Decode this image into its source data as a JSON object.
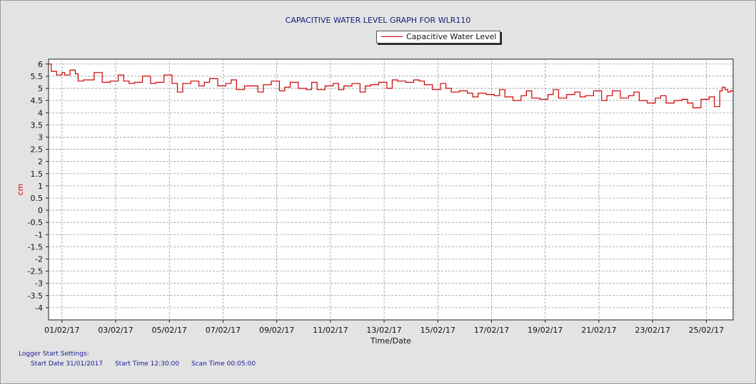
{
  "window": {
    "title": "CAPACITIVE WATER LEVEL GRAPH FOR WLR110"
  },
  "legend": {
    "entries": [
      "Capacitive Water Level"
    ]
  },
  "settings": {
    "header": "Logger Start Settings:",
    "start_date": "Start Date 31/01/2017",
    "start_time": "Start Time 12:30:00",
    "scan_time": "Scan Time 00:05:00"
  },
  "colors": {
    "series": "#cc0000",
    "title": "#1a1a7a",
    "grid": "#9a9a9a",
    "ylabel": "#cc0000"
  },
  "chart_data": {
    "type": "line",
    "title": "CAPACITIVE WATER LEVEL GRAPH FOR WLR110",
    "xlabel": "Time/Date",
    "ylabel": "cm",
    "ylim": [
      -4.5,
      6.2
    ],
    "yticks": [
      6,
      5.5,
      5,
      4.5,
      4,
      3.5,
      3,
      2.5,
      2,
      1.5,
      1,
      0.5,
      0,
      -0.5,
      -1,
      -1.5,
      -2,
      -2.5,
      -3,
      -3.5,
      -4
    ],
    "xlim_days": [
      0,
      25.5
    ],
    "xticks": [
      {
        "day": 0.5,
        "label": "01/02/17"
      },
      {
        "day": 2.5,
        "label": "03/02/17"
      },
      {
        "day": 4.5,
        "label": "05/02/17"
      },
      {
        "day": 6.5,
        "label": "07/02/17"
      },
      {
        "day": 8.5,
        "label": "09/02/17"
      },
      {
        "day": 10.5,
        "label": "11/02/17"
      },
      {
        "day": 12.5,
        "label": "13/02/17"
      },
      {
        "day": 14.5,
        "label": "15/02/17"
      },
      {
        "day": 16.5,
        "label": "17/02/17"
      },
      {
        "day": 18.5,
        "label": "19/02/17"
      },
      {
        "day": 20.5,
        "label": "21/02/17"
      },
      {
        "day": 22.5,
        "label": "23/02/17"
      },
      {
        "day": 24.5,
        "label": "25/02/17"
      }
    ],
    "grid": true,
    "legend_position": "top-center",
    "series": [
      {
        "name": "Capacitive Water Level",
        "x": [
          0.0,
          0.1,
          0.3,
          0.5,
          0.6,
          0.8,
          1.0,
          1.1,
          1.3,
          1.5,
          1.7,
          2.0,
          2.3,
          2.6,
          2.8,
          3.0,
          3.2,
          3.5,
          3.8,
          4.0,
          4.3,
          4.6,
          4.8,
          5.0,
          5.3,
          5.6,
          5.8,
          6.0,
          6.3,
          6.6,
          6.8,
          7.0,
          7.3,
          7.6,
          7.8,
          8.0,
          8.3,
          8.6,
          8.8,
          9.0,
          9.3,
          9.6,
          9.8,
          10.0,
          10.3,
          10.6,
          10.8,
          11.0,
          11.3,
          11.6,
          11.8,
          12.0,
          12.3,
          12.6,
          12.8,
          13.0,
          13.3,
          13.6,
          13.8,
          14.0,
          14.3,
          14.6,
          14.8,
          15.0,
          15.3,
          15.6,
          15.8,
          16.0,
          16.3,
          16.6,
          16.8,
          17.0,
          17.3,
          17.6,
          17.8,
          18.0,
          18.3,
          18.6,
          18.8,
          19.0,
          19.3,
          19.6,
          19.8,
          20.0,
          20.3,
          20.6,
          20.8,
          21.0,
          21.3,
          21.6,
          21.8,
          22.0,
          22.3,
          22.6,
          22.8,
          23.0,
          23.3,
          23.6,
          23.8,
          24.0,
          24.3,
          24.6,
          24.8,
          25.0,
          25.1,
          25.2,
          25.3,
          25.4,
          25.5
        ],
        "y": [
          6.0,
          5.7,
          5.55,
          5.65,
          5.55,
          5.75,
          5.6,
          5.3,
          5.35,
          5.35,
          5.65,
          5.25,
          5.3,
          5.55,
          5.3,
          5.2,
          5.25,
          5.5,
          5.2,
          5.25,
          5.55,
          5.2,
          4.85,
          5.2,
          5.3,
          5.1,
          5.25,
          5.4,
          5.1,
          5.2,
          5.35,
          4.95,
          5.1,
          5.1,
          4.85,
          5.15,
          5.3,
          4.9,
          5.05,
          5.25,
          5.0,
          4.95,
          5.25,
          4.95,
          5.1,
          5.2,
          4.95,
          5.1,
          5.2,
          4.85,
          5.1,
          5.15,
          5.25,
          5.0,
          5.35,
          5.3,
          5.25,
          5.35,
          5.3,
          5.15,
          4.95,
          5.2,
          5.0,
          4.85,
          4.9,
          4.8,
          4.65,
          4.8,
          4.75,
          4.7,
          4.95,
          4.65,
          4.5,
          4.7,
          4.9,
          4.6,
          4.55,
          4.75,
          4.95,
          4.6,
          4.75,
          4.85,
          4.65,
          4.7,
          4.9,
          4.5,
          4.7,
          4.9,
          4.6,
          4.7,
          4.85,
          4.5,
          4.4,
          4.6,
          4.7,
          4.4,
          4.5,
          4.55,
          4.4,
          4.2,
          4.55,
          4.65,
          4.25,
          4.9,
          5.05,
          4.95,
          4.85,
          4.9,
          4.8
        ]
      }
    ]
  }
}
